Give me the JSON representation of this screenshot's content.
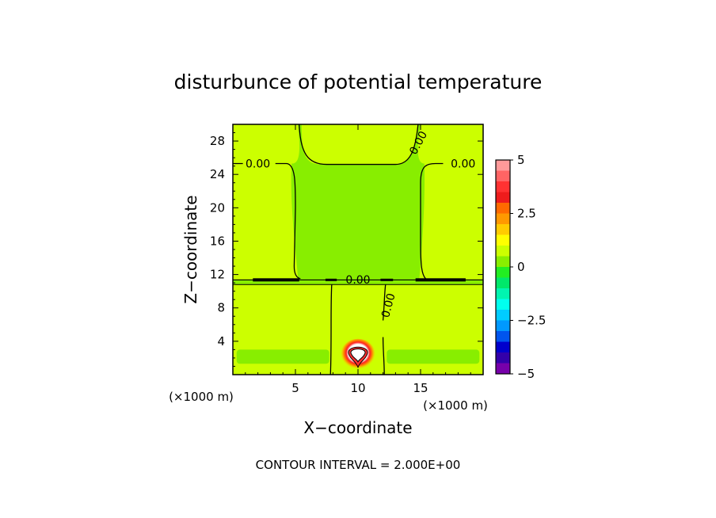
{
  "chart_data": {
    "type": "heatmap",
    "title": "disturbunce of potential temperature",
    "xlabel": "X−coordinate",
    "ylabel": "Z−coordinate",
    "x_unit_left": "(×1000 m)",
    "x_unit_right": "(×1000 m)",
    "xlim": [
      0,
      20
    ],
    "ylim": [
      0,
      30
    ],
    "xticks": [
      5,
      10,
      15
    ],
    "yticks": [
      4,
      8,
      12,
      16,
      20,
      24,
      28
    ],
    "grid": false,
    "footer": "CONTOUR INTERVAL = 2.000E+00",
    "contour_interval": 2.0,
    "contour_labels": [
      {
        "text": "0.00",
        "x": 2.0,
        "z": 25.3,
        "angle": 0
      },
      {
        "text": "0.00",
        "x": 18.4,
        "z": 25.3,
        "angle": 0
      },
      {
        "text": "0.00",
        "x": 14.8,
        "z": 27.8,
        "angle": -62
      },
      {
        "text": "0.00",
        "x": 10.0,
        "z": 11.4,
        "angle": 0
      },
      {
        "text": "0.00",
        "x": 12.4,
        "z": 8.3,
        "angle": -75
      }
    ],
    "colorbar": {
      "min": -5,
      "max": 5,
      "levels": 20,
      "ticks": [
        "5",
        "2.5",
        "0",
        "−2.5",
        "−5"
      ],
      "colors": [
        "#ff9a9a",
        "#ff6464",
        "#ff3232",
        "#ee1c1c",
        "#ff6a00",
        "#ff9900",
        "#ffcc00",
        "#ffff00",
        "#ccff00",
        "#88ee00",
        "#22ee22",
        "#00e86a",
        "#00f5b0",
        "#00ffee",
        "#00ccff",
        "#0099ff",
        "#0055ee",
        "#0000cc",
        "#3300aa",
        "#7700aa"
      ]
    },
    "field": {
      "background_value": 0.4,
      "upper_side_value": 0.9,
      "upper_core_value": 0.3,
      "lower_plume_value": 0.9,
      "lower_band_value": 0.1,
      "bubble": {
        "x": 10.0,
        "z": 2.4,
        "peak": 5.0
      }
    }
  }
}
